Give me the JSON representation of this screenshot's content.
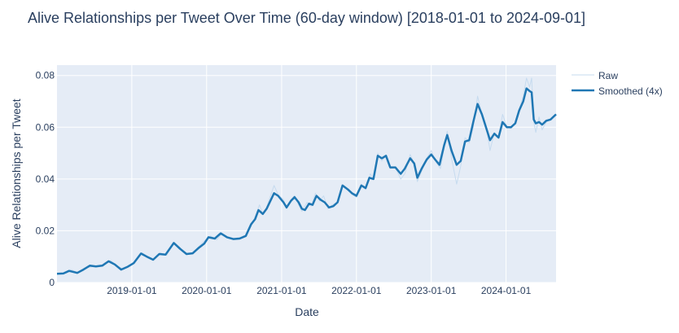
{
  "chart_data": {
    "type": "line",
    "title": "Alive Relationships per Tweet Over Time (60-day window) [2018-01-01 to 2024-09-01]",
    "xlabel": "Date",
    "ylabel": "Alive Relationships per Tweet",
    "xlim": [
      "2018-01-01",
      "2024-09-01"
    ],
    "ylim": [
      0,
      0.084
    ],
    "x_ticks": [
      "2019-01-01",
      "2020-01-01",
      "2021-01-01",
      "2022-01-01",
      "2023-01-01",
      "2024-01-01"
    ],
    "y_ticks": [
      0,
      0.02,
      0.04,
      0.06,
      0.08
    ],
    "y_tick_labels": [
      "0",
      "0.02",
      "0.04",
      "0.06",
      "0.08"
    ],
    "grid": true,
    "legend_position": "top-right",
    "colors": {
      "raw": "#c6dbef",
      "smoothed": "#1f77b4",
      "plot_bg": "#e5ecf6",
      "grid": "#ffffff"
    },
    "series": [
      {
        "name": "Raw",
        "style": "thin",
        "points": [
          [
            "2018-01-01",
            0.0034
          ],
          [
            "2018-02-15",
            0.0036
          ],
          [
            "2018-03-10",
            0.005
          ],
          [
            "2018-04-15",
            0.0038
          ],
          [
            "2018-05-15",
            0.0055
          ],
          [
            "2018-06-15",
            0.006
          ],
          [
            "2018-07-20",
            0.0066
          ],
          [
            "2018-08-20",
            0.0068
          ],
          [
            "2018-09-20",
            0.0085
          ],
          [
            "2018-10-20",
            0.0065
          ],
          [
            "2018-11-20",
            0.005
          ],
          [
            "2018-12-20",
            0.0065
          ],
          [
            "2019-01-20",
            0.0085
          ],
          [
            "2019-02-20",
            0.0115
          ],
          [
            "2019-03-20",
            0.01
          ],
          [
            "2019-04-20",
            0.009
          ],
          [
            "2019-05-20",
            0.0115
          ],
          [
            "2019-06-20",
            0.0105
          ],
          [
            "2019-07-25",
            0.0155
          ],
          [
            "2019-08-25",
            0.0135
          ],
          [
            "2019-09-25",
            0.011
          ],
          [
            "2019-10-25",
            0.0115
          ],
          [
            "2019-11-25",
            0.014
          ],
          [
            "2019-12-20",
            0.016
          ],
          [
            "2020-01-20",
            0.018
          ],
          [
            "2020-02-20",
            0.0165
          ],
          [
            "2020-03-15",
            0.019
          ],
          [
            "2020-04-15",
            0.0175
          ],
          [
            "2020-05-15",
            0.017
          ],
          [
            "2020-06-15",
            0.0175
          ],
          [
            "2020-07-15",
            0.0185
          ],
          [
            "2020-08-10",
            0.0225
          ],
          [
            "2020-08-25",
            0.0255
          ],
          [
            "2020-09-15",
            0.03
          ],
          [
            "2020-10-01",
            0.0265
          ],
          [
            "2020-10-20",
            0.029
          ],
          [
            "2020-11-10",
            0.034
          ],
          [
            "2020-11-25",
            0.0375
          ],
          [
            "2020-12-15",
            0.034
          ],
          [
            "2021-01-10",
            0.032
          ],
          [
            "2021-01-25",
            0.0285
          ],
          [
            "2021-02-15",
            0.032
          ],
          [
            "2021-03-05",
            0.0335
          ],
          [
            "2021-03-25",
            0.03
          ],
          [
            "2021-04-10",
            0.0275
          ],
          [
            "2021-05-05",
            0.031
          ],
          [
            "2021-05-25",
            0.0295
          ],
          [
            "2021-06-15",
            0.0345
          ],
          [
            "2021-07-05",
            0.0315
          ],
          [
            "2021-07-25",
            0.0335
          ],
          [
            "2021-08-15",
            0.0285
          ],
          [
            "2021-09-05",
            0.03
          ],
          [
            "2021-10-01",
            0.031
          ],
          [
            "2021-10-25",
            0.0375
          ],
          [
            "2021-11-20",
            0.036
          ],
          [
            "2021-12-10",
            0.034
          ],
          [
            "2022-01-01",
            0.033
          ],
          [
            "2022-01-25",
            0.038
          ],
          [
            "2022-02-15",
            0.036
          ],
          [
            "2022-03-10",
            0.042
          ],
          [
            "2022-03-25",
            0.04
          ],
          [
            "2022-04-15",
            0.05
          ],
          [
            "2022-05-05",
            0.047
          ],
          [
            "2022-05-25",
            0.049
          ],
          [
            "2022-06-15",
            0.044
          ],
          [
            "2022-07-10",
            0.0445
          ],
          [
            "2022-08-05",
            0.04
          ],
          [
            "2022-08-25",
            0.042
          ],
          [
            "2022-09-20",
            0.0495
          ],
          [
            "2022-10-10",
            0.046
          ],
          [
            "2022-10-25",
            0.039
          ],
          [
            "2022-11-15",
            0.043
          ],
          [
            "2022-12-10",
            0.048
          ],
          [
            "2023-01-01",
            0.051
          ],
          [
            "2023-01-25",
            0.0465
          ],
          [
            "2023-02-15",
            0.044
          ],
          [
            "2023-03-05",
            0.052
          ],
          [
            "2023-03-20",
            0.0585
          ],
          [
            "2023-04-10",
            0.048
          ],
          [
            "2023-05-05",
            0.038
          ],
          [
            "2023-05-25",
            0.045
          ],
          [
            "2023-06-15",
            0.056
          ],
          [
            "2023-07-05",
            0.054
          ],
          [
            "2023-07-25",
            0.06
          ],
          [
            "2023-08-15",
            0.072
          ],
          [
            "2023-09-05",
            0.065
          ],
          [
            "2023-09-25",
            0.061
          ],
          [
            "2023-10-15",
            0.051
          ],
          [
            "2023-11-05",
            0.058
          ],
          [
            "2023-11-25",
            0.056
          ],
          [
            "2023-12-15",
            0.065
          ],
          [
            "2024-01-05",
            0.06
          ],
          [
            "2024-01-25",
            0.0595
          ],
          [
            "2024-02-15",
            0.062
          ],
          [
            "2024-03-05",
            0.067
          ],
          [
            "2024-03-25",
            0.072
          ],
          [
            "2024-04-10",
            0.079
          ],
          [
            "2024-04-25",
            0.0755
          ],
          [
            "2024-05-05",
            0.079
          ],
          [
            "2024-05-15",
            0.062
          ],
          [
            "2024-05-25",
            0.058
          ],
          [
            "2024-06-10",
            0.064
          ],
          [
            "2024-06-25",
            0.059
          ],
          [
            "2024-07-15",
            0.062
          ],
          [
            "2024-08-05",
            0.063
          ],
          [
            "2024-09-01",
            0.065
          ]
        ]
      },
      {
        "name": "Smoothed (4x)",
        "style": "bold",
        "points": [
          [
            "2018-01-01",
            0.0034
          ],
          [
            "2018-02-01",
            0.0035
          ],
          [
            "2018-03-01",
            0.0045
          ],
          [
            "2018-04-10",
            0.0037
          ],
          [
            "2018-05-10",
            0.005
          ],
          [
            "2018-06-10",
            0.0065
          ],
          [
            "2018-07-10",
            0.0062
          ],
          [
            "2018-08-10",
            0.0065
          ],
          [
            "2018-09-10",
            0.0082
          ],
          [
            "2018-10-10",
            0.007
          ],
          [
            "2018-11-10",
            0.005
          ],
          [
            "2018-12-10",
            0.006
          ],
          [
            "2019-01-10",
            0.0075
          ],
          [
            "2019-02-15",
            0.0112
          ],
          [
            "2019-03-15",
            0.01
          ],
          [
            "2019-04-15",
            0.0088
          ],
          [
            "2019-05-15",
            0.011
          ],
          [
            "2019-06-15",
            0.0108
          ],
          [
            "2019-07-25",
            0.0153
          ],
          [
            "2019-08-25",
            0.013
          ],
          [
            "2019-09-25",
            0.011
          ],
          [
            "2019-10-25",
            0.0113
          ],
          [
            "2019-11-25",
            0.0135
          ],
          [
            "2019-12-20",
            0.015
          ],
          [
            "2020-01-10",
            0.0175
          ],
          [
            "2020-02-10",
            0.017
          ],
          [
            "2020-03-10",
            0.019
          ],
          [
            "2020-04-10",
            0.0175
          ],
          [
            "2020-05-10",
            0.0168
          ],
          [
            "2020-06-10",
            0.017
          ],
          [
            "2020-07-10",
            0.018
          ],
          [
            "2020-08-05",
            0.0225
          ],
          [
            "2020-08-25",
            0.0245
          ],
          [
            "2020-09-10",
            0.028
          ],
          [
            "2020-10-01",
            0.0265
          ],
          [
            "2020-10-20",
            0.0285
          ],
          [
            "2020-11-10",
            0.032
          ],
          [
            "2020-11-25",
            0.0345
          ],
          [
            "2020-12-15",
            0.0335
          ],
          [
            "2021-01-10",
            0.031
          ],
          [
            "2021-01-25",
            0.029
          ],
          [
            "2021-02-15",
            0.0315
          ],
          [
            "2021-03-05",
            0.033
          ],
          [
            "2021-03-25",
            0.031
          ],
          [
            "2021-04-10",
            0.0285
          ],
          [
            "2021-04-25",
            0.028
          ],
          [
            "2021-05-15",
            0.0305
          ],
          [
            "2021-06-01",
            0.03
          ],
          [
            "2021-06-20",
            0.0335
          ],
          [
            "2021-07-10",
            0.032
          ],
          [
            "2021-07-30",
            0.031
          ],
          [
            "2021-08-20",
            0.029
          ],
          [
            "2021-09-10",
            0.0295
          ],
          [
            "2021-10-01",
            0.031
          ],
          [
            "2021-10-25",
            0.0375
          ],
          [
            "2021-11-20",
            0.036
          ],
          [
            "2021-12-10",
            0.0345
          ],
          [
            "2022-01-01",
            0.0335
          ],
          [
            "2022-01-25",
            0.0375
          ],
          [
            "2022-02-15",
            0.0365
          ],
          [
            "2022-03-05",
            0.0405
          ],
          [
            "2022-03-25",
            0.04
          ],
          [
            "2022-04-15",
            0.049
          ],
          [
            "2022-05-05",
            0.048
          ],
          [
            "2022-05-25",
            0.049
          ],
          [
            "2022-06-15",
            0.0445
          ],
          [
            "2022-07-10",
            0.0445
          ],
          [
            "2022-08-05",
            0.042
          ],
          [
            "2022-08-25",
            0.044
          ],
          [
            "2022-09-20",
            0.048
          ],
          [
            "2022-10-10",
            0.046
          ],
          [
            "2022-10-25",
            0.0405
          ],
          [
            "2022-11-15",
            0.044
          ],
          [
            "2022-12-10",
            0.0475
          ],
          [
            "2023-01-01",
            0.0495
          ],
          [
            "2023-01-20",
            0.0475
          ],
          [
            "2023-02-10",
            0.0455
          ],
          [
            "2023-03-05",
            0.053
          ],
          [
            "2023-03-20",
            0.057
          ],
          [
            "2023-04-10",
            0.051
          ],
          [
            "2023-05-05",
            0.0455
          ],
          [
            "2023-05-25",
            0.047
          ],
          [
            "2023-06-15",
            0.0545
          ],
          [
            "2023-07-05",
            0.055
          ],
          [
            "2023-07-25",
            0.062
          ],
          [
            "2023-08-15",
            0.069
          ],
          [
            "2023-09-05",
            0.065
          ],
          [
            "2023-09-25",
            0.06
          ],
          [
            "2023-10-15",
            0.055
          ],
          [
            "2023-11-05",
            0.0575
          ],
          [
            "2023-11-25",
            0.056
          ],
          [
            "2023-12-15",
            0.062
          ],
          [
            "2024-01-05",
            0.06
          ],
          [
            "2024-01-25",
            0.06
          ],
          [
            "2024-02-15",
            0.0615
          ],
          [
            "2024-03-05",
            0.0665
          ],
          [
            "2024-03-25",
            0.07
          ],
          [
            "2024-04-10",
            0.075
          ],
          [
            "2024-04-25",
            0.074
          ],
          [
            "2024-05-05",
            0.0735
          ],
          [
            "2024-05-15",
            0.063
          ],
          [
            "2024-05-25",
            0.0615
          ],
          [
            "2024-06-10",
            0.062
          ],
          [
            "2024-06-25",
            0.061
          ],
          [
            "2024-07-15",
            0.0625
          ],
          [
            "2024-08-05",
            0.063
          ],
          [
            "2024-09-01",
            0.065
          ]
        ]
      }
    ]
  }
}
